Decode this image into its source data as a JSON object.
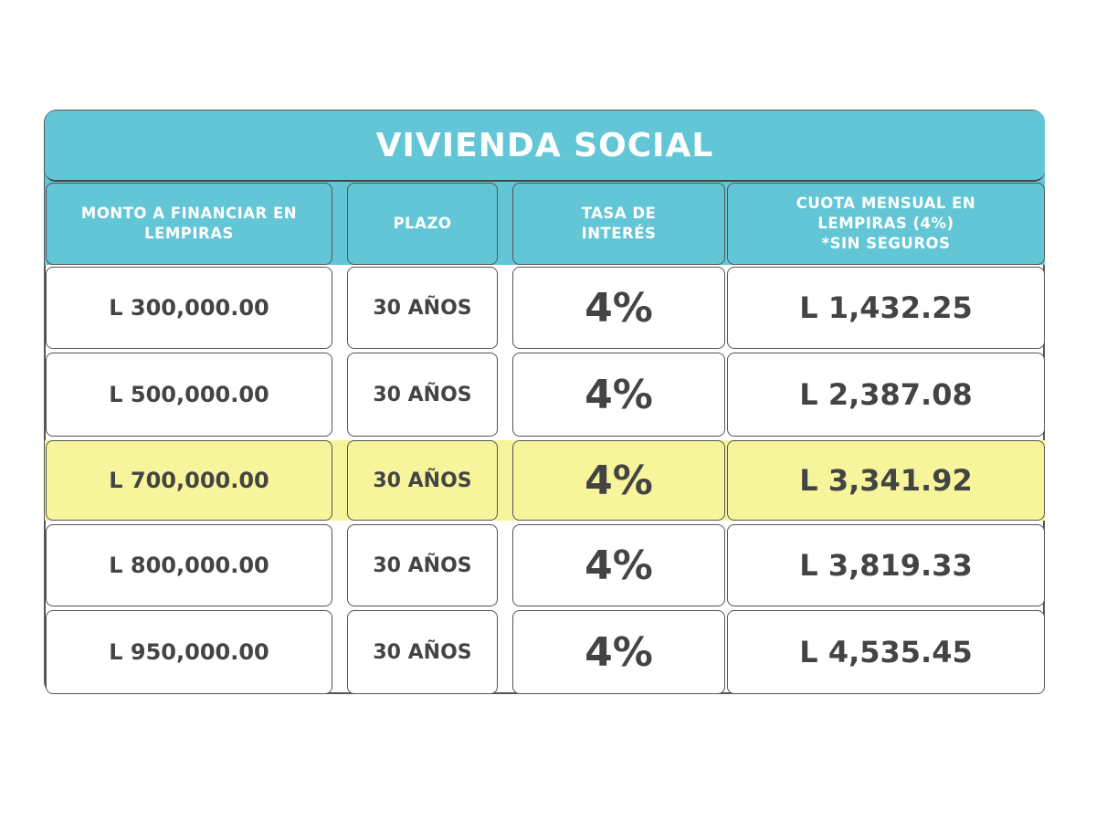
{
  "title": "VIVIENDA SOCIAL",
  "headers": [
    "MONTO A FINANCIAR EN\nLEMPIRAS",
    "PLAZO",
    "TASA DE\nINTERÉS",
    "CUOTA MENSUAL EN\nLEMPIRAS (4%)\n*SIN SEGUROS"
  ],
  "rows": [
    {
      "monto": "L 300,000.00",
      "plazo": "30 AÑOS",
      "tasa": "4%",
      "cuota": "L 1,432.25",
      "highlighted": false
    },
    {
      "monto": "L 500,000.00",
      "plazo": "30 AÑOS",
      "tasa": "4%",
      "cuota": "L 2,387.08",
      "highlighted": false
    },
    {
      "monto": "L 700,000.00",
      "plazo": "30 AÑOS",
      "tasa": "4%",
      "cuota": "L 3,341.92",
      "highlighted": true
    },
    {
      "monto": "L 800,000.00",
      "plazo": "30 AÑOS",
      "tasa": "4%",
      "cuota": "L 3,819.33",
      "highlighted": false
    },
    {
      "monto": "L 950,000.00",
      "plazo": "30 AÑOS",
      "tasa": "4%",
      "cuota": "L 4,535.45",
      "highlighted": false
    }
  ],
  "colors": {
    "header": "#62c6d6",
    "highlight": "#f7f59c",
    "text": "#444444"
  }
}
